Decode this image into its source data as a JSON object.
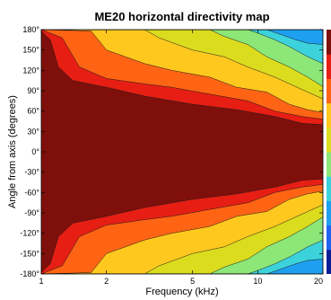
{
  "chart_data": {
    "type": "heatmap",
    "title": "ME20 horizontal directivity map",
    "xlabel": "Frequency (kHz)",
    "ylabel": "Angle from axis (degrees)",
    "x_scale": "log",
    "xlim": [
      1,
      20
    ],
    "ylim": [
      -180,
      180
    ],
    "x_ticks": [
      {
        "value": 1,
        "label": "1"
      },
      {
        "value": 2,
        "label": "2"
      },
      {
        "value": 5,
        "label": "5"
      },
      {
        "value": 10,
        "label": "10"
      },
      {
        "value": 20,
        "label": "20"
      }
    ],
    "y_ticks": [
      {
        "value": 180,
        "label": "180°"
      },
      {
        "value": 150,
        "label": "150°"
      },
      {
        "value": 120,
        "label": "120°"
      },
      {
        "value": 90,
        "label": "90°"
      },
      {
        "value": 60,
        "label": "60°"
      },
      {
        "value": 30,
        "label": "30°"
      },
      {
        "value": 0,
        "label": "0°"
      },
      {
        "value": -30,
        "label": "-30°"
      },
      {
        "value": -60,
        "label": "-60°"
      },
      {
        "value": -90,
        "label": "-90°"
      },
      {
        "value": -120,
        "label": "-120°"
      },
      {
        "value": -150,
        "label": "-150°"
      },
      {
        "value": -180,
        "label": "-180°"
      }
    ],
    "contour_colors": [
      "#0a1e96",
      "#1e64f0",
      "#1ea0f0",
      "#3cd2dc",
      "#8ce678",
      "#dcdc1e",
      "#ffc81e",
      "#ff6414",
      "#e61e14",
      "#7f0f0a"
    ],
    "contour_levels_colors_order": "lowest to highest response",
    "isoline_bands": [
      {
        "band": 8,
        "points": [
          [
            1.0,
            178
          ],
          [
            1.1,
            165
          ],
          [
            1.2,
            125
          ],
          [
            1.4,
            105
          ],
          [
            2.0,
            95
          ],
          [
            3.0,
            82
          ],
          [
            5.0,
            70
          ],
          [
            8.0,
            62
          ],
          [
            12.0,
            52
          ],
          [
            16.0,
            42
          ],
          [
            20.0,
            40
          ]
        ]
      },
      {
        "band": 7,
        "points": [
          [
            1.0,
            180
          ],
          [
            1.25,
            168
          ],
          [
            1.5,
            125
          ],
          [
            2.0,
            108
          ],
          [
            3.0,
            100
          ],
          [
            4.0,
            95
          ],
          [
            6.0,
            85
          ],
          [
            9.0,
            75
          ],
          [
            12.0,
            60
          ],
          [
            16.0,
            52
          ],
          [
            20.0,
            48
          ]
        ]
      },
      {
        "band": 6,
        "points": [
          [
            1.0,
            180
          ],
          [
            1.7,
            178
          ],
          [
            2.0,
            150
          ],
          [
            3.0,
            130
          ],
          [
            4.0,
            120
          ],
          [
            6.0,
            110
          ],
          [
            8.0,
            95
          ],
          [
            11.0,
            88
          ],
          [
            14.0,
            70
          ],
          [
            17.0,
            62
          ],
          [
            20.0,
            58
          ]
        ]
      },
      {
        "band": 5,
        "points": [
          [
            1.0,
            180
          ],
          [
            3.0,
            180
          ],
          [
            3.5,
            168
          ],
          [
            5.0,
            150
          ],
          [
            7.0,
            140
          ],
          [
            9.0,
            125
          ],
          [
            12.0,
            110
          ],
          [
            15.0,
            96
          ],
          [
            20.0,
            78
          ]
        ]
      },
      {
        "band": 4,
        "points": [
          [
            1.0,
            180
          ],
          [
            6.0,
            180
          ],
          [
            7.0,
            170
          ],
          [
            9.0,
            158
          ],
          [
            11.0,
            140
          ],
          [
            14.0,
            125
          ],
          [
            17.0,
            110
          ],
          [
            20.0,
            96
          ]
        ]
      },
      {
        "band": 3,
        "points": [
          [
            1.0,
            180
          ],
          [
            9.0,
            180
          ],
          [
            10.0,
            175
          ],
          [
            12.0,
            165
          ],
          [
            14.0,
            155
          ],
          [
            17.0,
            140
          ],
          [
            20.0,
            130
          ]
        ]
      },
      {
        "band": 2,
        "points": [
          [
            1.0,
            180
          ],
          [
            11.0,
            180
          ],
          [
            13.0,
            172
          ],
          [
            15.0,
            165
          ],
          [
            17.0,
            160
          ],
          [
            20.0,
            158
          ]
        ]
      }
    ],
    "colorbar": "partially visible at right edge"
  }
}
